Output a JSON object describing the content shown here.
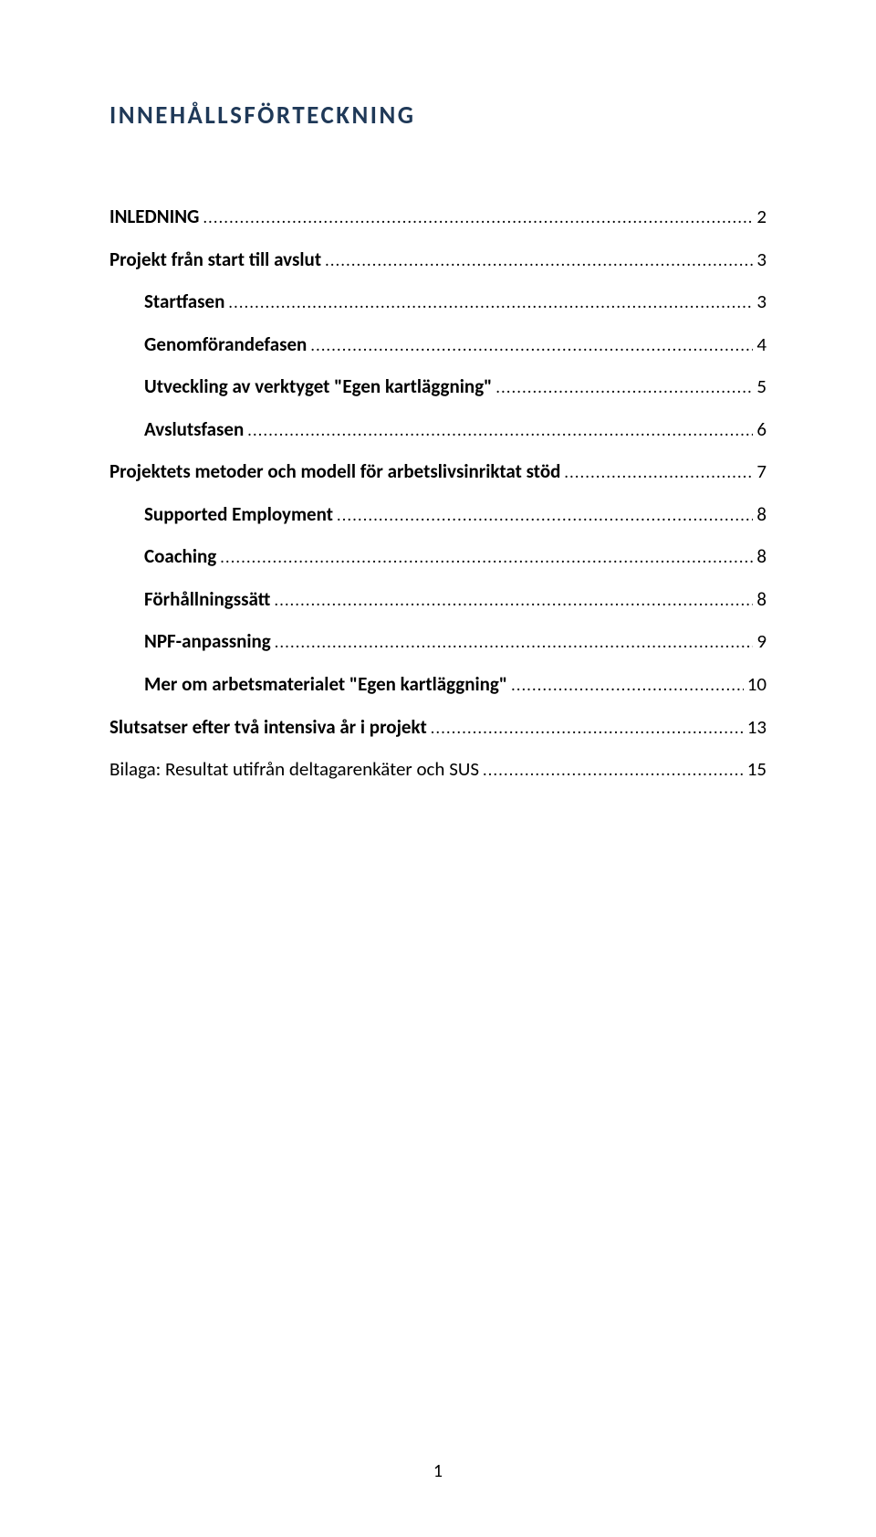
{
  "title": "INNEHÅLLSFÖRTECKNING",
  "page_number": "1",
  "colors": {
    "title": "#1f3958",
    "text": "#000000",
    "background": "#ffffff"
  },
  "typography": {
    "title_fontsize": 27,
    "title_letter_spacing": 2.5,
    "entry_fontsize": 21,
    "page_number_fontsize": 20
  },
  "toc": [
    {
      "label": "INLEDNING",
      "page": "2",
      "level": 0,
      "bold": true
    },
    {
      "label": "Projekt från start till avslut",
      "page": "3",
      "level": 0,
      "bold": true
    },
    {
      "label": "Startfasen",
      "page": "3",
      "level": 1,
      "bold": true
    },
    {
      "label": "Genomförandefasen",
      "page": "4",
      "level": 1,
      "bold": true
    },
    {
      "label": "Utveckling av verktyget \"Egen kartläggning\"",
      "page": "5",
      "level": 1,
      "bold": true
    },
    {
      "label": "Avslutsfasen",
      "page": "6",
      "level": 1,
      "bold": true
    },
    {
      "label": "Projektets metoder och modell för arbetslivsinriktat stöd",
      "page": "7",
      "level": 0,
      "bold": true
    },
    {
      "label": "Supported Employment",
      "page": "8",
      "level": 1,
      "bold": true
    },
    {
      "label": "Coaching",
      "page": "8",
      "level": 1,
      "bold": true
    },
    {
      "label": "Förhållningssätt",
      "page": "8",
      "level": 1,
      "bold": true
    },
    {
      "label": "NPF-anpassning",
      "page": "9",
      "level": 1,
      "bold": true
    },
    {
      "label": "Mer om arbetsmaterialet \"Egen kartläggning\"",
      "page": "10",
      "level": 1,
      "bold": true
    },
    {
      "label": "Slutsatser efter två intensiva år i projekt",
      "page": "13",
      "level": 0,
      "bold": true
    },
    {
      "label": "Bilaga: Resultat utifrån deltagarenkäter och SUS",
      "page": "15",
      "level": 0,
      "bold": false
    }
  ]
}
